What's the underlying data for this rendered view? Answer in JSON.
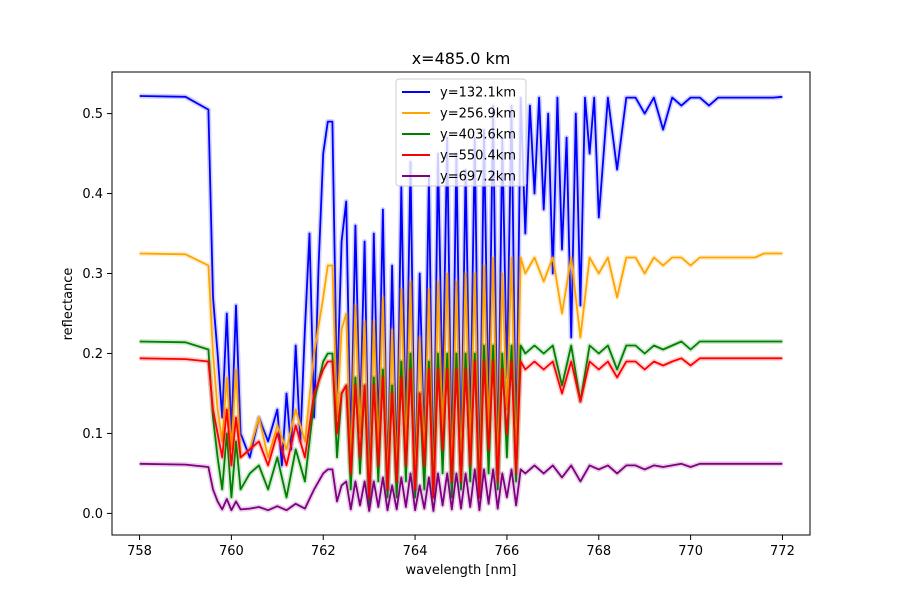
{
  "chart_data": {
    "type": "line",
    "title": "x=485.0 km",
    "xlabel": "wavelength [nm]",
    "ylabel": "reflectance",
    "xlim": [
      757.4,
      772.6
    ],
    "ylim": [
      -0.027,
      0.552
    ],
    "xticks": [
      758,
      760,
      762,
      764,
      766,
      768,
      770,
      772
    ],
    "xtick_labels": [
      "758",
      "760",
      "762",
      "764",
      "766",
      "768",
      "770",
      "772"
    ],
    "yticks": [
      0.0,
      0.1,
      0.2,
      0.3,
      0.4,
      0.5
    ],
    "ytick_labels": [
      "0.0",
      "0.1",
      "0.2",
      "0.3",
      "0.4",
      "0.5"
    ],
    "grid": false,
    "legend_position": "top-center",
    "series": [
      {
        "name": "y=132.1km",
        "color": "#0000ff",
        "base": 0.522,
        "x": [
          758.0,
          759.0,
          759.5,
          759.6,
          759.7,
          759.8,
          759.9,
          760.0,
          760.1,
          760.2,
          760.4,
          760.6,
          760.8,
          761.0,
          761.1,
          761.2,
          761.3,
          761.4,
          761.5,
          761.6,
          761.7,
          761.8,
          761.9,
          762.0,
          762.1,
          762.2,
          762.3,
          762.4,
          762.5,
          762.6,
          762.7,
          762.8,
          762.9,
          763.0,
          763.1,
          763.2,
          763.3,
          763.4,
          763.5,
          763.6,
          763.7,
          763.8,
          763.9,
          764.0,
          764.1,
          764.2,
          764.3,
          764.4,
          764.5,
          764.6,
          764.7,
          764.8,
          764.9,
          765.0,
          765.1,
          765.2,
          765.3,
          765.4,
          765.5,
          765.6,
          765.7,
          765.8,
          765.9,
          766.0,
          766.1,
          766.2,
          766.3,
          766.4,
          766.5,
          766.6,
          766.7,
          766.8,
          766.9,
          767.0,
          767.1,
          767.2,
          767.3,
          767.4,
          767.5,
          767.6,
          767.7,
          767.8,
          767.9,
          768.0,
          768.2,
          768.4,
          768.6,
          768.8,
          769.0,
          769.2,
          769.4,
          769.6,
          769.8,
          770.0,
          770.2,
          770.4,
          770.6,
          770.8,
          771.0,
          771.2,
          771.4,
          771.6,
          771.8,
          772.0
        ],
        "y": [
          0.522,
          0.521,
          0.505,
          0.27,
          0.2,
          0.12,
          0.25,
          0.1,
          0.26,
          0.1,
          0.07,
          0.12,
          0.09,
          0.13,
          0.06,
          0.15,
          0.08,
          0.21,
          0.09,
          0.23,
          0.35,
          0.12,
          0.31,
          0.45,
          0.49,
          0.49,
          0.15,
          0.34,
          0.39,
          0.08,
          0.36,
          0.12,
          0.34,
          0.02,
          0.35,
          0.1,
          0.38,
          0.03,
          0.31,
          0.05,
          0.41,
          0.1,
          0.44,
          0.03,
          0.3,
          0.08,
          0.42,
          0.02,
          0.45,
          0.14,
          0.47,
          0.05,
          0.45,
          0.06,
          0.43,
          0.1,
          0.47,
          0.02,
          0.48,
          0.12,
          0.51,
          0.05,
          0.47,
          0.17,
          0.51,
          0.07,
          0.52,
          0.35,
          0.51,
          0.4,
          0.52,
          0.38,
          0.5,
          0.3,
          0.52,
          0.33,
          0.47,
          0.22,
          0.5,
          0.26,
          0.52,
          0.45,
          0.52,
          0.37,
          0.52,
          0.43,
          0.52,
          0.52,
          0.5,
          0.52,
          0.48,
          0.52,
          0.51,
          0.52,
          0.52,
          0.51,
          0.52,
          0.52,
          0.52,
          0.52,
          0.52,
          0.52,
          0.52,
          0.521
        ]
      },
      {
        "name": "y=256.9km",
        "color": "#ffa500",
        "base": 0.325,
        "x": [
          758.0,
          759.0,
          759.5,
          759.6,
          759.7,
          759.8,
          759.9,
          760.0,
          760.1,
          760.2,
          760.4,
          760.6,
          760.8,
          761.0,
          761.2,
          761.4,
          761.6,
          761.8,
          762.0,
          762.1,
          762.2,
          762.3,
          762.4,
          762.5,
          762.6,
          762.7,
          762.8,
          762.9,
          763.0,
          763.1,
          763.2,
          763.3,
          763.4,
          763.5,
          763.6,
          763.7,
          763.8,
          763.9,
          764.0,
          764.1,
          764.2,
          764.3,
          764.4,
          764.5,
          764.6,
          764.7,
          764.8,
          764.9,
          765.0,
          765.1,
          765.2,
          765.3,
          765.4,
          765.5,
          765.6,
          765.7,
          765.8,
          765.9,
          766.0,
          766.1,
          766.2,
          766.3,
          766.4,
          766.6,
          766.8,
          767.0,
          767.2,
          767.4,
          767.6,
          767.8,
          768.0,
          768.2,
          768.4,
          768.6,
          768.8,
          769.0,
          769.2,
          769.4,
          769.6,
          769.8,
          770.0,
          770.2,
          770.4,
          770.6,
          770.8,
          771.0,
          771.2,
          771.4,
          771.6,
          771.8,
          772.0
        ],
        "y": [
          0.325,
          0.324,
          0.31,
          0.2,
          0.13,
          0.09,
          0.17,
          0.08,
          0.18,
          0.07,
          0.08,
          0.12,
          0.07,
          0.11,
          0.08,
          0.13,
          0.09,
          0.2,
          0.27,
          0.31,
          0.31,
          0.12,
          0.23,
          0.25,
          0.06,
          0.26,
          0.1,
          0.24,
          0.02,
          0.24,
          0.08,
          0.27,
          0.03,
          0.23,
          0.04,
          0.28,
          0.08,
          0.29,
          0.03,
          0.22,
          0.07,
          0.28,
          0.02,
          0.29,
          0.1,
          0.3,
          0.04,
          0.29,
          0.05,
          0.3,
          0.08,
          0.3,
          0.02,
          0.31,
          0.1,
          0.32,
          0.05,
          0.3,
          0.13,
          0.32,
          0.06,
          0.32,
          0.3,
          0.32,
          0.29,
          0.32,
          0.25,
          0.32,
          0.22,
          0.32,
          0.3,
          0.32,
          0.27,
          0.32,
          0.32,
          0.3,
          0.32,
          0.31,
          0.32,
          0.32,
          0.31,
          0.32,
          0.32,
          0.32,
          0.32,
          0.32,
          0.32,
          0.32,
          0.325,
          0.325,
          0.325
        ]
      },
      {
        "name": "y=403.6km",
        "color": "#008000",
        "base": 0.215,
        "x": [
          758.0,
          759.0,
          759.5,
          759.6,
          759.7,
          759.8,
          759.9,
          760.0,
          760.1,
          760.2,
          760.4,
          760.6,
          760.8,
          761.0,
          761.2,
          761.4,
          761.6,
          761.8,
          762.0,
          762.1,
          762.2,
          762.3,
          762.4,
          762.5,
          762.6,
          762.7,
          762.8,
          762.9,
          763.0,
          763.1,
          763.2,
          763.3,
          763.4,
          763.5,
          763.6,
          763.7,
          763.8,
          763.9,
          764.0,
          764.1,
          764.2,
          764.3,
          764.4,
          764.5,
          764.6,
          764.7,
          764.8,
          764.9,
          765.0,
          765.1,
          765.2,
          765.3,
          765.4,
          765.5,
          765.6,
          765.7,
          765.8,
          765.9,
          766.0,
          766.1,
          766.2,
          766.3,
          766.4,
          766.6,
          766.8,
          767.0,
          767.2,
          767.4,
          767.6,
          767.8,
          768.0,
          768.2,
          768.4,
          768.6,
          768.8,
          769.0,
          769.2,
          769.4,
          769.6,
          769.8,
          770.0,
          770.2,
          770.4,
          770.6,
          770.8,
          771.0,
          771.2,
          771.4,
          771.6,
          771.8,
          772.0
        ],
        "y": [
          0.215,
          0.214,
          0.205,
          0.12,
          0.07,
          0.03,
          0.1,
          0.02,
          0.09,
          0.03,
          0.05,
          0.06,
          0.03,
          0.07,
          0.02,
          0.08,
          0.04,
          0.14,
          0.19,
          0.2,
          0.2,
          0.07,
          0.15,
          0.16,
          0.03,
          0.17,
          0.05,
          0.16,
          0.01,
          0.17,
          0.04,
          0.18,
          0.02,
          0.16,
          0.02,
          0.19,
          0.04,
          0.2,
          0.02,
          0.15,
          0.03,
          0.19,
          0.02,
          0.2,
          0.05,
          0.2,
          0.02,
          0.2,
          0.03,
          0.2,
          0.04,
          0.2,
          0.02,
          0.21,
          0.05,
          0.21,
          0.03,
          0.2,
          0.07,
          0.21,
          0.04,
          0.21,
          0.2,
          0.21,
          0.2,
          0.21,
          0.16,
          0.21,
          0.14,
          0.21,
          0.2,
          0.21,
          0.18,
          0.21,
          0.21,
          0.2,
          0.21,
          0.205,
          0.21,
          0.215,
          0.205,
          0.215,
          0.215,
          0.215,
          0.215,
          0.215,
          0.215,
          0.215,
          0.215,
          0.215,
          0.215
        ]
      },
      {
        "name": "y=550.4km",
        "color": "#ff0000",
        "base": 0.194,
        "x": [
          758.0,
          759.0,
          759.5,
          759.6,
          759.7,
          759.8,
          759.9,
          760.0,
          760.1,
          760.2,
          760.4,
          760.6,
          760.8,
          761.0,
          761.2,
          761.4,
          761.6,
          761.8,
          762.0,
          762.1,
          762.2,
          762.3,
          762.4,
          762.5,
          762.6,
          762.7,
          762.8,
          762.9,
          763.0,
          763.1,
          763.2,
          763.3,
          763.4,
          763.5,
          763.6,
          763.7,
          763.8,
          763.9,
          764.0,
          764.1,
          764.2,
          764.3,
          764.4,
          764.5,
          764.6,
          764.7,
          764.8,
          764.9,
          765.0,
          765.1,
          765.2,
          765.3,
          765.4,
          765.5,
          765.6,
          765.7,
          765.8,
          765.9,
          766.0,
          766.1,
          766.2,
          766.3,
          766.4,
          766.6,
          766.8,
          767.0,
          767.2,
          767.4,
          767.6,
          767.8,
          768.0,
          768.2,
          768.4,
          768.6,
          768.8,
          769.0,
          769.2,
          769.4,
          769.6,
          769.8,
          770.0,
          770.2,
          770.4,
          770.6,
          770.8,
          771.0,
          771.2,
          771.4,
          771.6,
          771.8,
          772.0
        ],
        "y": [
          0.194,
          0.193,
          0.19,
          0.13,
          0.1,
          0.07,
          0.13,
          0.06,
          0.12,
          0.07,
          0.08,
          0.09,
          0.06,
          0.1,
          0.06,
          0.11,
          0.07,
          0.15,
          0.18,
          0.19,
          0.19,
          0.1,
          0.15,
          0.16,
          0.05,
          0.16,
          0.07,
          0.16,
          0.02,
          0.16,
          0.06,
          0.17,
          0.03,
          0.15,
          0.04,
          0.17,
          0.06,
          0.18,
          0.03,
          0.15,
          0.06,
          0.18,
          0.02,
          0.18,
          0.08,
          0.18,
          0.04,
          0.18,
          0.04,
          0.18,
          0.06,
          0.19,
          0.02,
          0.19,
          0.08,
          0.19,
          0.04,
          0.18,
          0.1,
          0.19,
          0.05,
          0.19,
          0.18,
          0.19,
          0.18,
          0.19,
          0.15,
          0.19,
          0.14,
          0.19,
          0.18,
          0.19,
          0.17,
          0.19,
          0.19,
          0.18,
          0.19,
          0.185,
          0.19,
          0.194,
          0.185,
          0.194,
          0.194,
          0.194,
          0.194,
          0.194,
          0.194,
          0.194,
          0.194,
          0.194,
          0.194
        ]
      },
      {
        "name": "y=697.2km",
        "color": "#800080",
        "base": 0.062,
        "x": [
          758.0,
          759.0,
          759.5,
          759.6,
          759.7,
          759.8,
          759.9,
          760.0,
          760.1,
          760.2,
          760.4,
          760.6,
          760.8,
          761.0,
          761.2,
          761.4,
          761.6,
          761.8,
          762.0,
          762.1,
          762.2,
          762.3,
          762.4,
          762.5,
          762.6,
          762.7,
          762.8,
          762.9,
          763.0,
          763.1,
          763.2,
          763.3,
          763.4,
          763.5,
          763.6,
          763.7,
          763.8,
          763.9,
          764.0,
          764.1,
          764.2,
          764.3,
          764.4,
          764.5,
          764.6,
          764.7,
          764.8,
          764.9,
          765.0,
          765.1,
          765.2,
          765.3,
          765.4,
          765.5,
          765.6,
          765.7,
          765.8,
          765.9,
          766.0,
          766.1,
          766.2,
          766.3,
          766.4,
          766.6,
          766.8,
          767.0,
          767.2,
          767.4,
          767.6,
          767.8,
          768.0,
          768.2,
          768.4,
          768.6,
          768.8,
          769.0,
          769.2,
          769.4,
          769.6,
          769.8,
          770.0,
          770.2,
          770.4,
          770.6,
          770.8,
          771.0,
          771.2,
          771.4,
          771.6,
          771.8,
          772.0
        ],
        "y": [
          0.062,
          0.061,
          0.058,
          0.03,
          0.015,
          0.005,
          0.018,
          0.004,
          0.015,
          0.005,
          0.006,
          0.008,
          0.004,
          0.009,
          0.004,
          0.012,
          0.006,
          0.03,
          0.05,
          0.055,
          0.055,
          0.015,
          0.035,
          0.04,
          0.005,
          0.04,
          0.01,
          0.04,
          0.003,
          0.04,
          0.008,
          0.045,
          0.004,
          0.035,
          0.005,
          0.045,
          0.008,
          0.05,
          0.004,
          0.035,
          0.006,
          0.045,
          0.003,
          0.05,
          0.01,
          0.05,
          0.005,
          0.05,
          0.006,
          0.05,
          0.008,
          0.055,
          0.004,
          0.055,
          0.012,
          0.055,
          0.006,
          0.05,
          0.02,
          0.055,
          0.01,
          0.055,
          0.05,
          0.06,
          0.05,
          0.06,
          0.045,
          0.06,
          0.04,
          0.06,
          0.055,
          0.06,
          0.05,
          0.06,
          0.06,
          0.055,
          0.06,
          0.058,
          0.06,
          0.062,
          0.058,
          0.062,
          0.062,
          0.062,
          0.062,
          0.062,
          0.062,
          0.062,
          0.062,
          0.062,
          0.062
        ]
      }
    ]
  }
}
